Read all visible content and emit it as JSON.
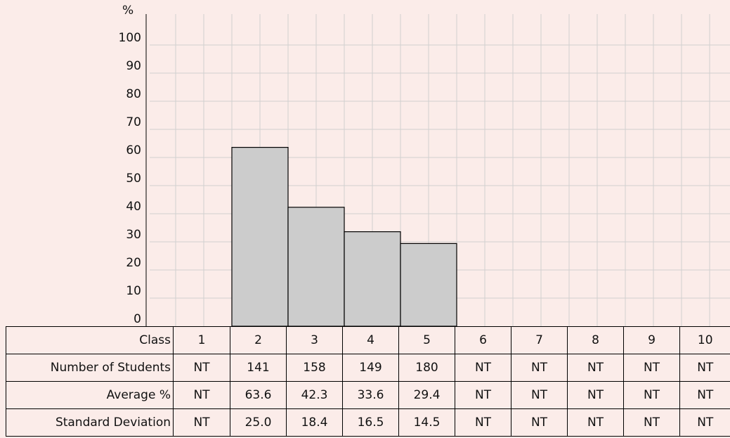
{
  "chart_data": {
    "type": "bar",
    "ylabel": "%",
    "ylim": [
      0,
      105
    ],
    "yticks": [
      0,
      10,
      20,
      30,
      40,
      50,
      60,
      70,
      80,
      90,
      100
    ],
    "categories": [
      "1",
      "2",
      "3",
      "4",
      "5",
      "6",
      "7",
      "8",
      "9",
      "10"
    ],
    "values": [
      null,
      63.6,
      42.3,
      33.6,
      29.4,
      null,
      null,
      null,
      null,
      null
    ],
    "grid": true,
    "bar_color": "#cccccc",
    "background_color": "#fbece9",
    "grid_color": "#d0d0d0"
  },
  "table": {
    "rows": [
      {
        "label": "Class",
        "cells": [
          "1",
          "2",
          "3",
          "4",
          "5",
          "6",
          "7",
          "8",
          "9",
          "10"
        ]
      },
      {
        "label": "Number of Students",
        "cells": [
          "NT",
          "141",
          "158",
          "149",
          "180",
          "NT",
          "NT",
          "NT",
          "NT",
          "NT"
        ]
      },
      {
        "label": "Average %",
        "cells": [
          "NT",
          "63.6",
          "42.3",
          "33.6",
          "29.4",
          "NT",
          "NT",
          "NT",
          "NT",
          "NT"
        ]
      },
      {
        "label": "Standard Deviation",
        "cells": [
          "NT",
          "25.0",
          "18.4",
          "16.5",
          "14.5",
          "NT",
          "NT",
          "NT",
          "NT",
          "NT"
        ]
      }
    ]
  }
}
